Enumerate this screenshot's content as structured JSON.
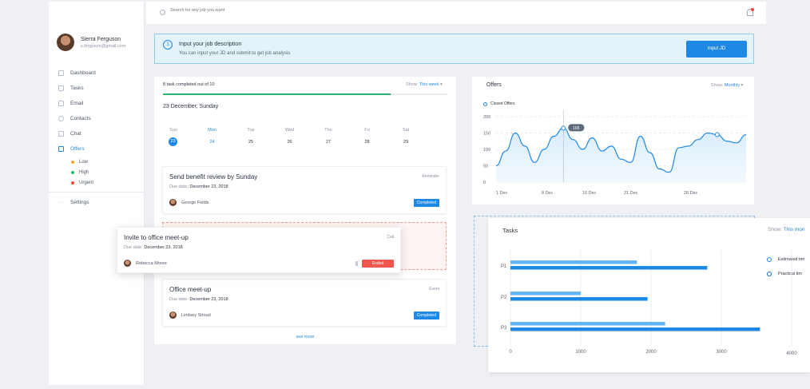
{
  "sidebar": {
    "profile": {
      "name": "Sierra Ferguson",
      "email": "s.ferguson@gmail.com"
    },
    "items": [
      {
        "label": "Dashboard",
        "icon": "grid-icon"
      },
      {
        "label": "Tasks",
        "icon": "tasks-icon"
      },
      {
        "label": "Email",
        "icon": "mail-icon"
      },
      {
        "label": "Contacts",
        "icon": "contacts-icon"
      },
      {
        "label": "Chat",
        "icon": "chat-icon"
      },
      {
        "label": "Offers",
        "icon": "offers-icon",
        "active": true
      }
    ],
    "sub_items": [
      {
        "label": "Low",
        "color": "#f5a623"
      },
      {
        "label": "High",
        "color": "#26b86c"
      },
      {
        "label": "Urgent",
        "color": "#f44336"
      }
    ],
    "settings_label": "Settings"
  },
  "topbar": {
    "search_placeholder": "Search for any job you want"
  },
  "banner": {
    "number": "1",
    "title": "Input your job description",
    "subtitle": "You can input your JD and submit to get job analysis",
    "button": "Input JD"
  },
  "tasks_panel": {
    "progress_label": "8 task completed out of 10",
    "progress": 0.8,
    "show_label": "Show:",
    "show_value": "This week",
    "date_title": "23 December, Sunday",
    "week_days": [
      "Sun",
      "Mon",
      "Tue",
      "Wed",
      "Thu",
      "Fri",
      "Sat"
    ],
    "week_dates": [
      "23",
      "24",
      "25",
      "26",
      "27",
      "28",
      "29"
    ],
    "cards": [
      {
        "title": "Send benefit review by Sunday",
        "tag": "Reminder",
        "due_label": "Due date:",
        "due": "December 23, 2018",
        "person": "George Fields",
        "status": "Completed"
      },
      {
        "title": "Invite to office meet-up",
        "tag": "Call",
        "due_label": "Due date:",
        "due": "December 23, 2018",
        "person": "Rebecca Moore",
        "status": "Ended"
      },
      {
        "title": "Office meet-up",
        "tag": "Event",
        "due_label": "Due date:",
        "due": "December 23, 2018",
        "person": "Lindsey Stroud",
        "status": "Completed"
      }
    ],
    "see_more": "see more"
  },
  "offers_panel": {
    "title": "Offers",
    "show_label": "Show:",
    "show_value": "Monthly",
    "legend": "Closed Offers",
    "tooltip": "165"
  },
  "tasks_chart_panel": {
    "title": "Tasks",
    "show_label": "Show:",
    "show_value": "This mon",
    "legend": [
      "Estimated tim",
      "Practical tim"
    ]
  },
  "chart_data": [
    {
      "type": "area",
      "title": "Offers",
      "series": [
        {
          "name": "Closed Offers",
          "x": [
            0,
            1,
            2,
            3,
            4,
            5,
            6,
            7,
            8,
            9,
            10,
            11,
            12,
            13,
            14,
            15,
            16,
            17,
            18,
            19,
            20,
            21,
            22,
            23,
            24,
            25,
            26
          ],
          "values": [
            50,
            95,
            150,
            110,
            60,
            100,
            140,
            165,
            130,
            100,
            135,
            95,
            110,
            70,
            60,
            140,
            90,
            40,
            30,
            105,
            110,
            130,
            150,
            145,
            125,
            120,
            145
          ]
        }
      ],
      "x_tick_labels": [
        "1 Dec",
        "8 Dec",
        "16 Dec",
        "21 Dec",
        "28 Dec"
      ],
      "ylim": [
        0,
        200
      ],
      "y_ticks": [
        0,
        50,
        100,
        150,
        200
      ],
      "highlight": {
        "value": 165
      },
      "colors": {
        "line": "#1e88e5",
        "fill": "#d8ecfb"
      }
    },
    {
      "type": "bar",
      "orientation": "horizontal",
      "title": "Tasks",
      "categories": [
        "P1",
        "P2",
        "P3"
      ],
      "series": [
        {
          "name": "Estimated tim",
          "values": [
            1800,
            1000,
            2200
          ]
        },
        {
          "name": "Practical tim",
          "values": [
            2800,
            1950,
            3550
          ]
        }
      ],
      "x_ticks": [
        0,
        1000,
        2000,
        3000,
        4000
      ],
      "xlim": [
        0,
        4000
      ],
      "colors": [
        "#64b5f6",
        "#1e88e5"
      ]
    }
  ]
}
